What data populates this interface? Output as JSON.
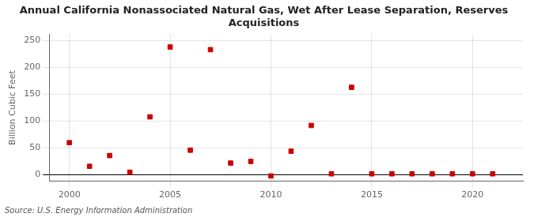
{
  "chart_data": {
    "type": "scatter",
    "title": "Annual California Nonassociated Natural Gas, Wet After Lease Separation, Reserves\nAcquisitions",
    "ylabel": "Billion Cubic Feet",
    "annotation": "Source: U.S. Energy Information Administration",
    "x": [
      2000,
      2001,
      2002,
      2003,
      2004,
      2005,
      2006,
      2007,
      2008,
      2009,
      2010,
      2011,
      2012,
      2013,
      2014,
      2015,
      2016,
      2017,
      2018,
      2019,
      2020,
      2021
    ],
    "values": [
      60,
      16,
      36,
      5,
      108,
      238,
      46,
      233,
      22,
      25,
      -2,
      44,
      92,
      2,
      163,
      2,
      2,
      2,
      2,
      2,
      2,
      2
    ],
    "color": "#cc0000",
    "marker": "square",
    "xlim": [
      1999,
      2022.5
    ],
    "ylim": [
      -12,
      262
    ],
    "xticks": [
      2000,
      2005,
      2010,
      2015,
      2020
    ],
    "yticks": [
      0,
      50,
      100,
      150,
      200,
      250
    ],
    "grid": true
  }
}
